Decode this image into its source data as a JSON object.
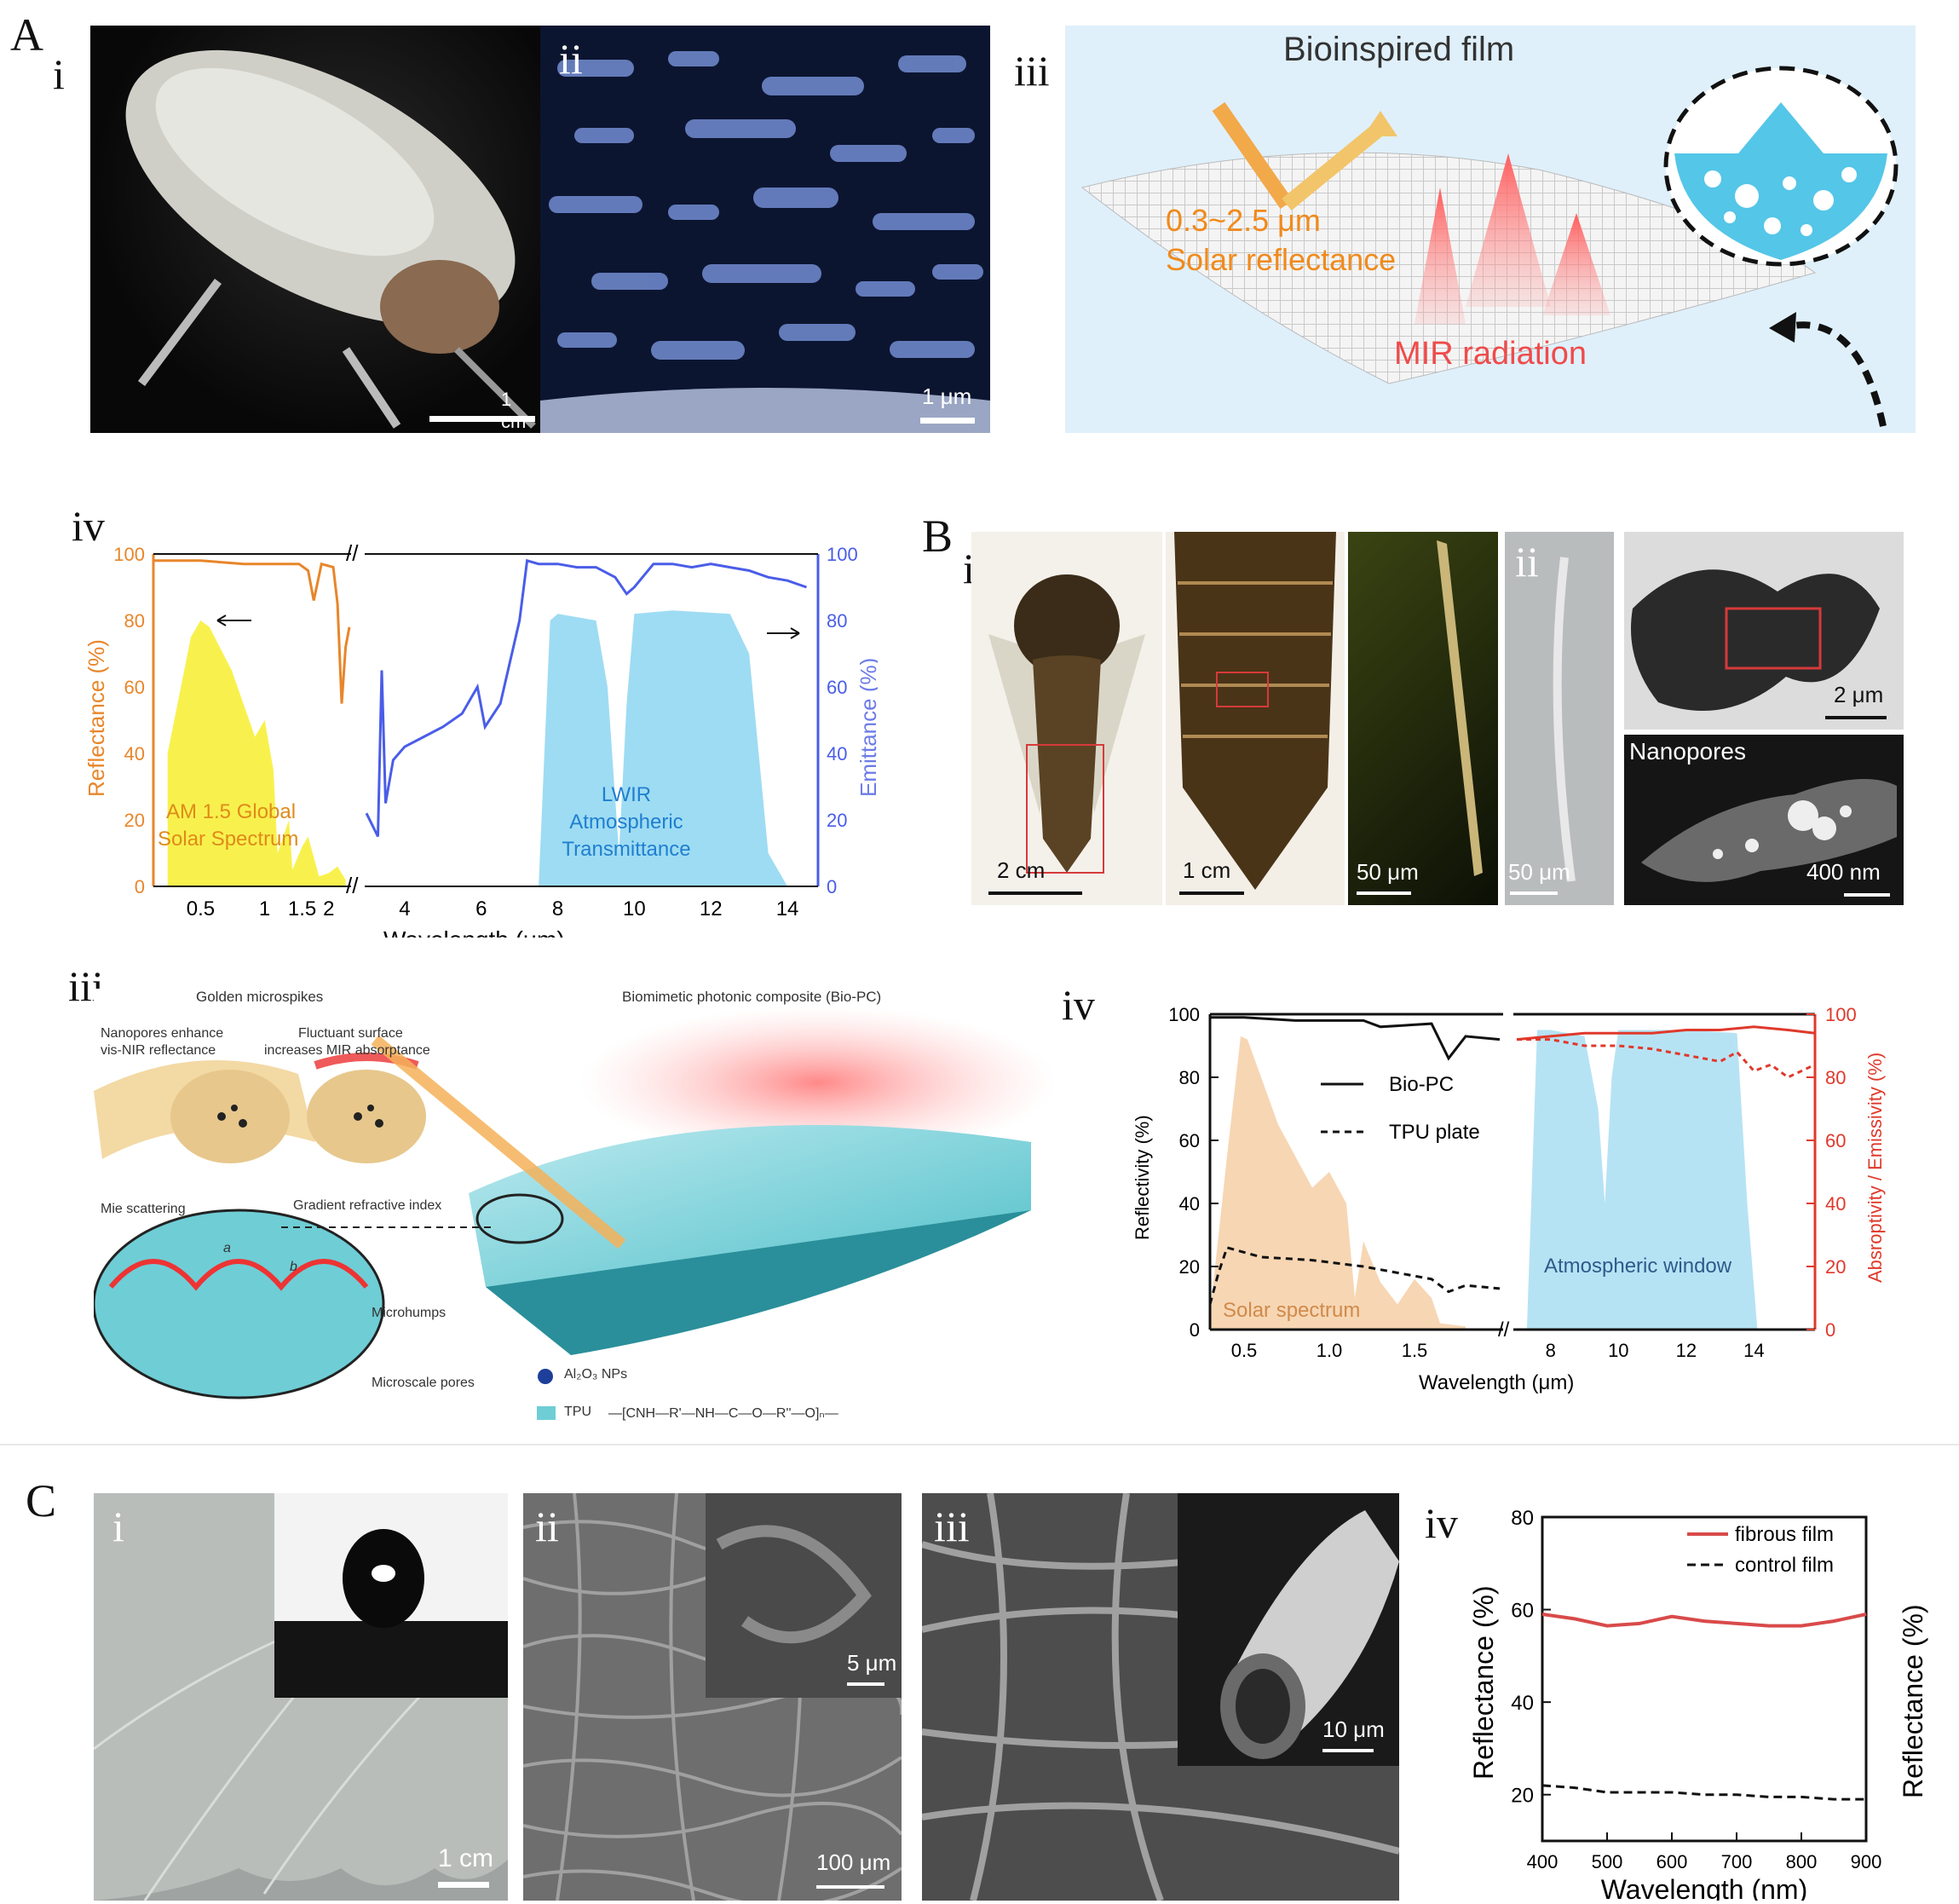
{
  "panels": {
    "A": "A",
    "B": "B",
    "C": "C",
    "A_i": "i",
    "A_ii": "ii",
    "A_iii": "iii",
    "A_iv": "iv",
    "B_i": "i",
    "B_ii": "ii",
    "B_iii": "iii",
    "B_iv": "iv",
    "C_i": "i",
    "C_ii": "ii",
    "C_iii": "iii",
    "C_iv": "iv"
  },
  "A": {
    "scale_i": "1 cm",
    "scale_ii": "1 μm",
    "iii": {
      "title": "Bioinspired film",
      "wavelength": "0.3~2.5 μm",
      "solar": "Solar reflectance",
      "mir": "MIR radiation"
    }
  },
  "B": {
    "scale_i1": "2 cm",
    "scale_i2": "1 cm",
    "scale_i3": "50 μm",
    "scale_ii1": "50 μm",
    "scale_ii2": "2 μm",
    "nanopores": "Nanopores",
    "scale_ii3": "400 nm",
    "iii": {
      "golden": "Golden microspikes",
      "nanopores": "Nanopores enhance",
      "nanopores2": "vis-NIR reflectance",
      "fluct": "Fluctuant surface",
      "fluct2": "increases MIR absorptance",
      "mie": "Mie scattering",
      "gradient": "Gradient refractive index",
      "biopc": "Biomimetic photonic composite (Bio-PC)",
      "microhumps": "Microhumps",
      "pores": "Microscale pores",
      "al2o3": "Al₂O₃ NPs",
      "tpu": "TPU",
      "formula": "—[CNH—R'—NH—C—O—R''—O]ₙ—",
      "a": "a",
      "b": "b"
    }
  },
  "C": {
    "scale_i": "1 cm",
    "scale_ii_inset": "5 μm",
    "scale_ii": "100 μm",
    "scale_iii": "10 μm"
  },
  "chart_data": [
    {
      "id": "A-iv",
      "type": "line",
      "xlabel": "Wavelength (μm)",
      "ylabel_left": "Reflectance (%)",
      "ylabel_right": "Emittance (%)",
      "ylim": [
        0,
        100
      ],
      "left_ticks": [
        "0",
        "20",
        "40",
        "60",
        "80",
        "100"
      ],
      "right_ticks": [
        "0",
        "20",
        "40",
        "60",
        "80",
        "100"
      ],
      "x_ticks_left": [
        "0.5",
        "1",
        "1.5",
        "2"
      ],
      "x_ticks_right": [
        "4",
        "6",
        "8",
        "10",
        "12",
        "14"
      ],
      "annotations": {
        "solar_label": "AM 1.5 Global",
        "solar_label2": "Solar Spectrum",
        "lwir_label": "LWIR",
        "lwir_label2": "Atmospheric",
        "lwir_label3": "Transmittance"
      },
      "series": [
        {
          "name": "Reflectance",
          "color": "#e8862a",
          "x": [
            0.3,
            0.5,
            0.8,
            1.2,
            1.45,
            1.6,
            1.7,
            1.85,
            2.1,
            2.2,
            2.3,
            2.4,
            2.5
          ],
          "y": [
            98,
            98,
            97,
            97,
            97,
            95,
            86,
            97,
            96,
            85,
            55,
            72,
            78
          ]
        },
        {
          "name": "Emittance",
          "color": "#4a5de8",
          "x": [
            3,
            3.3,
            3.4,
            3.5,
            3.7,
            4,
            4.5,
            5,
            5.5,
            5.9,
            6.1,
            6.5,
            7,
            7.2,
            7.5,
            8,
            8.5,
            9,
            9.5,
            9.8,
            10,
            10.5,
            11,
            11.5,
            12,
            12.5,
            13,
            13.5,
            14,
            14.5
          ],
          "y": [
            22,
            15,
            65,
            25,
            38,
            42,
            45,
            48,
            52,
            60,
            48,
            55,
            80,
            98,
            97,
            97,
            96,
            96,
            93,
            88,
            90,
            97,
            97,
            96,
            97,
            96,
            95,
            93,
            92,
            90
          ]
        }
      ]
    },
    {
      "id": "B-iv",
      "type": "line",
      "xlabel": "Wavelength (μm)",
      "ylabel_left": "Reflectivity (%)",
      "ylabel_right": "Absroptivity / Emissivity (%)",
      "ylim": [
        0,
        100
      ],
      "left_ticks": [
        "0",
        "20",
        "40",
        "60",
        "80",
        "100"
      ],
      "right_ticks": [
        "0",
        "20",
        "40",
        "60",
        "80",
        "100"
      ],
      "x_ticks_left": [
        "0.5",
        "1.0",
        "1.5"
      ],
      "x_ticks_right": [
        "8",
        "10",
        "12",
        "14"
      ],
      "annotations": {
        "solar": "Solar spectrum",
        "atm": "Atmospheric window"
      },
      "series": [
        {
          "name": "Bio-PC",
          "style": "solid",
          "x": [
            0.3,
            0.5,
            0.8,
            1.2,
            1.3,
            1.6,
            1.7,
            1.8,
            2.0
          ],
          "y": [
            99,
            99,
            98,
            98,
            96,
            97,
            86,
            93,
            92
          ]
        },
        {
          "name": "TPU plate",
          "style": "dashed",
          "x": [
            0.3,
            0.35,
            0.4,
            0.6,
            0.9,
            1.2,
            1.4,
            1.6,
            1.7,
            1.8,
            2.0
          ],
          "y": [
            8,
            18,
            26,
            23,
            22,
            20,
            18,
            16,
            12,
            14,
            13
          ]
        }
      ]
    },
    {
      "id": "C-iv",
      "type": "line",
      "xlabel": "Wavelength (nm)",
      "ylabel": "Reflectance (%)",
      "ylabel_right": "Reflectance (%)",
      "ylim": [
        10,
        80
      ],
      "y_ticks": [
        "20",
        "40",
        "60",
        "80"
      ],
      "x_ticks": [
        "400",
        "500",
        "600",
        "700",
        "800",
        "900"
      ],
      "series": [
        {
          "name": "fibrous film",
          "color": "#d94a4a",
          "style": "solid",
          "x": [
            400,
            450,
            500,
            550,
            600,
            650,
            700,
            750,
            800,
            850,
            900
          ],
          "y": [
            59,
            58,
            56.5,
            57,
            58.5,
            57.5,
            57,
            56.5,
            56.5,
            57.5,
            59
          ]
        },
        {
          "name": "control film",
          "color": "#111111",
          "style": "dashed",
          "x": [
            400,
            450,
            500,
            550,
            600,
            650,
            700,
            750,
            800,
            850,
            900
          ],
          "y": [
            22,
            21.5,
            20.5,
            20.5,
            20.5,
            20,
            20,
            19.5,
            19.5,
            19,
            19
          ]
        }
      ]
    }
  ]
}
